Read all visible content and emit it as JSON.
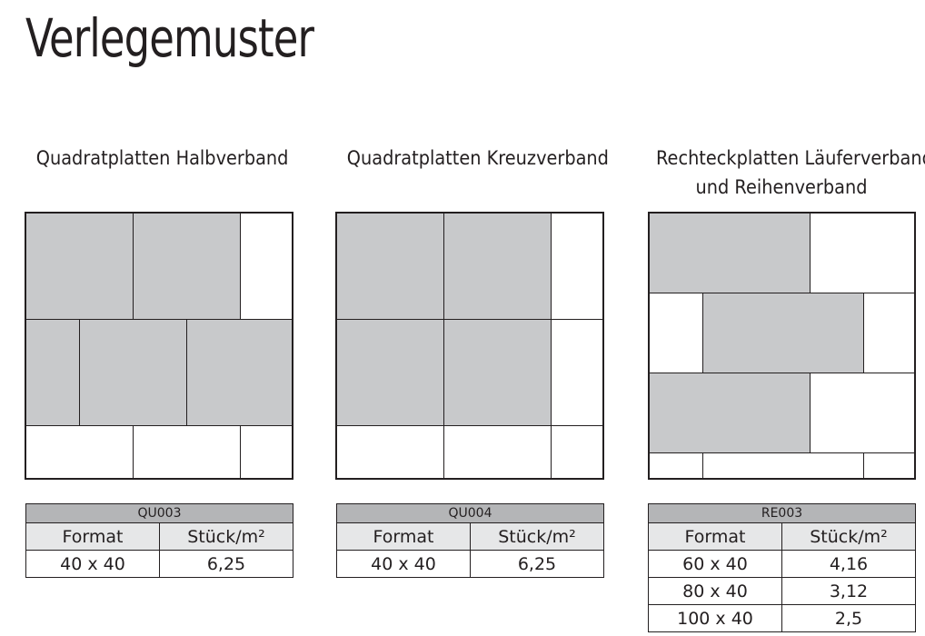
{
  "page_title": "Verlegemuster",
  "sections": [
    {
      "heading": [
        "Quadratplatten Halbverband"
      ],
      "code": "QU003",
      "columns": [
        "Format",
        "Stück/m²"
      ],
      "rows": [
        [
          "40 x 40",
          "6,25"
        ]
      ]
    },
    {
      "heading": [
        "Quadratplatten Kreuzverband"
      ],
      "code": "QU004",
      "columns": [
        "Format",
        "Stück/m²"
      ],
      "rows": [
        [
          "40 x 40",
          "6,25"
        ]
      ]
    },
    {
      "heading": [
        "Rechteckplatten Läuferverband",
        "und Reihenverband"
      ],
      "code": "RE003",
      "columns": [
        "Format",
        "Stück/m²"
      ],
      "rows": [
        [
          "60 x 40",
          "4,16"
        ],
        [
          "80 x 40",
          "3,12"
        ],
        [
          "100 x 40",
          "2,5"
        ]
      ]
    }
  ],
  "colors": {
    "tile_grey": "#c8c9cb",
    "line": "#231f20",
    "table_code_bg": "#b4b5b7",
    "table_head_bg": "#e6e7e8"
  }
}
